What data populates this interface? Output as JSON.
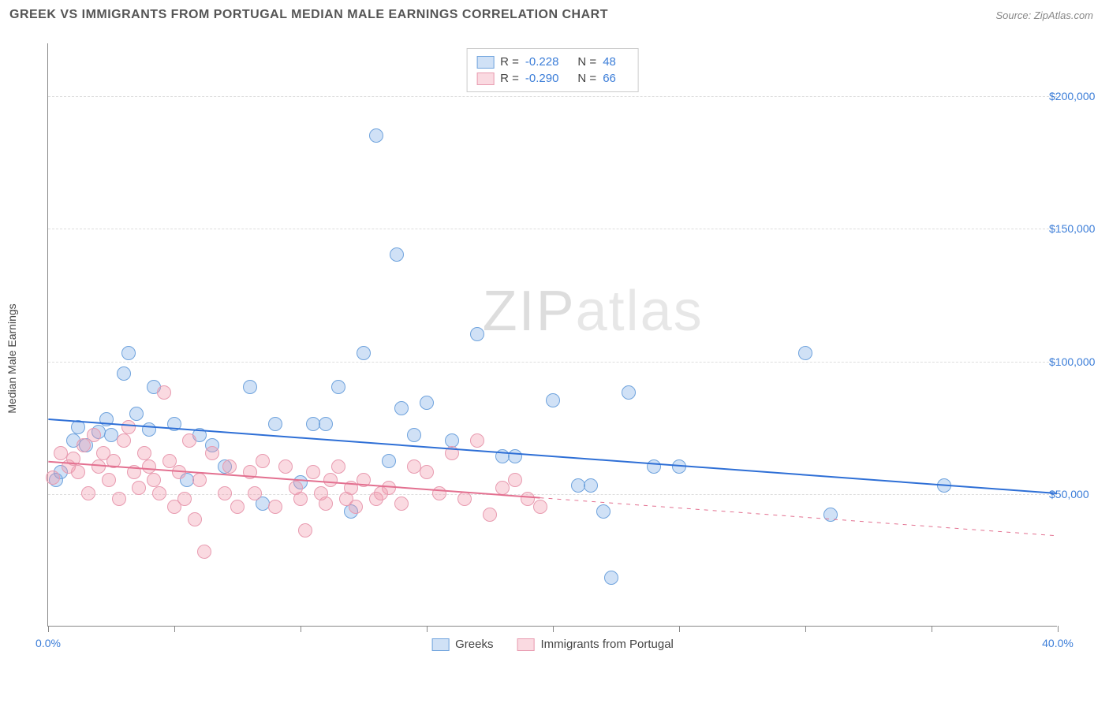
{
  "header": {
    "title": "GREEK VS IMMIGRANTS FROM PORTUGAL MEDIAN MALE EARNINGS CORRELATION CHART",
    "source": "Source: ZipAtlas.com"
  },
  "chart": {
    "type": "scatter",
    "ylabel": "Median Male Earnings",
    "watermark_prefix": "ZIP",
    "watermark_suffix": "atlas",
    "background_color": "#ffffff",
    "grid_color": "#dddddd",
    "axis_color": "#888888",
    "xlim": [
      0,
      40
    ],
    "ylim": [
      0,
      220000
    ],
    "xtick_positions": [
      0,
      5,
      10,
      15,
      20,
      25,
      30,
      35,
      40
    ],
    "xtick_labels": {
      "0": "0.0%",
      "40": "40.0%"
    },
    "ytick_positions": [
      50000,
      100000,
      150000,
      200000
    ],
    "ytick_labels": {
      "50000": "$50,000",
      "100000": "$100,000",
      "150000": "$150,000",
      "200000": "$200,000"
    },
    "marker_radius": 9,
    "marker_stroke_width": 1.2,
    "series": [
      {
        "key": "greeks",
        "label": "Greeks",
        "fill": "rgba(120,170,230,0.35)",
        "stroke": "#6fa3dd",
        "r_label": "R =",
        "r_value": "-0.228",
        "n_label": "N =",
        "n_value": "48",
        "trend": {
          "x1": 0,
          "y1": 78000,
          "x2": 40,
          "y2": 50000,
          "solid_to_x": 40,
          "color": "#2e6fd6",
          "width": 2
        },
        "points": [
          [
            0.3,
            55000
          ],
          [
            0.5,
            58000
          ],
          [
            1.0,
            70000
          ],
          [
            1.2,
            75000
          ],
          [
            1.5,
            68000
          ],
          [
            2.0,
            73000
          ],
          [
            2.3,
            78000
          ],
          [
            2.5,
            72000
          ],
          [
            3.0,
            95000
          ],
          [
            3.2,
            103000
          ],
          [
            3.5,
            80000
          ],
          [
            4.0,
            74000
          ],
          [
            4.2,
            90000
          ],
          [
            5.0,
            76000
          ],
          [
            5.5,
            55000
          ],
          [
            6.0,
            72000
          ],
          [
            6.5,
            68000
          ],
          [
            7.0,
            60000
          ],
          [
            8.0,
            90000
          ],
          [
            8.5,
            46000
          ],
          [
            9.0,
            76000
          ],
          [
            10.0,
            54000
          ],
          [
            10.5,
            76000
          ],
          [
            11.0,
            76000
          ],
          [
            11.5,
            90000
          ],
          [
            12.0,
            43000
          ],
          [
            12.5,
            103000
          ],
          [
            13.0,
            185000
          ],
          [
            13.5,
            62000
          ],
          [
            13.8,
            140000
          ],
          [
            14.0,
            82000
          ],
          [
            14.5,
            72000
          ],
          [
            15.0,
            84000
          ],
          [
            16.0,
            70000
          ],
          [
            17.0,
            110000
          ],
          [
            18.0,
            64000
          ],
          [
            18.5,
            64000
          ],
          [
            20.0,
            85000
          ],
          [
            21.0,
            53000
          ],
          [
            21.5,
            53000
          ],
          [
            22.0,
            43000
          ],
          [
            22.3,
            18000
          ],
          [
            23.0,
            88000
          ],
          [
            24.0,
            60000
          ],
          [
            25.0,
            60000
          ],
          [
            30.0,
            103000
          ],
          [
            31.0,
            42000
          ],
          [
            35.5,
            53000
          ]
        ]
      },
      {
        "key": "portugal",
        "label": "Immigrants from Portugal",
        "fill": "rgba(240,150,170,0.35)",
        "stroke": "#e89bb0",
        "r_label": "R =",
        "r_value": "-0.290",
        "n_label": "N =",
        "n_value": "66",
        "trend": {
          "x1": 0,
          "y1": 62000,
          "x2": 40,
          "y2": 34000,
          "solid_to_x": 19.5,
          "color": "#e37090",
          "width": 2
        },
        "points": [
          [
            0.2,
            56000
          ],
          [
            0.5,
            65000
          ],
          [
            0.8,
            60000
          ],
          [
            1.0,
            63000
          ],
          [
            1.2,
            58000
          ],
          [
            1.4,
            68000
          ],
          [
            1.6,
            50000
          ],
          [
            1.8,
            72000
          ],
          [
            2.0,
            60000
          ],
          [
            2.2,
            65000
          ],
          [
            2.4,
            55000
          ],
          [
            2.6,
            62000
          ],
          [
            2.8,
            48000
          ],
          [
            3.0,
            70000
          ],
          [
            3.2,
            75000
          ],
          [
            3.4,
            58000
          ],
          [
            3.6,
            52000
          ],
          [
            3.8,
            65000
          ],
          [
            4.0,
            60000
          ],
          [
            4.2,
            55000
          ],
          [
            4.4,
            50000
          ],
          [
            4.6,
            88000
          ],
          [
            4.8,
            62000
          ],
          [
            5.0,
            45000
          ],
          [
            5.2,
            58000
          ],
          [
            5.4,
            48000
          ],
          [
            5.6,
            70000
          ],
          [
            5.8,
            40000
          ],
          [
            6.0,
            55000
          ],
          [
            6.2,
            28000
          ],
          [
            6.5,
            65000
          ],
          [
            7.0,
            50000
          ],
          [
            7.2,
            60000
          ],
          [
            7.5,
            45000
          ],
          [
            8.0,
            58000
          ],
          [
            8.2,
            50000
          ],
          [
            8.5,
            62000
          ],
          [
            9.0,
            45000
          ],
          [
            9.4,
            60000
          ],
          [
            9.8,
            52000
          ],
          [
            10.0,
            48000
          ],
          [
            10.2,
            36000
          ],
          [
            10.5,
            58000
          ],
          [
            10.8,
            50000
          ],
          [
            11.0,
            46000
          ],
          [
            11.2,
            55000
          ],
          [
            11.5,
            60000
          ],
          [
            11.8,
            48000
          ],
          [
            12.0,
            52000
          ],
          [
            12.2,
            45000
          ],
          [
            12.5,
            55000
          ],
          [
            13.0,
            48000
          ],
          [
            13.5,
            52000
          ],
          [
            14.0,
            46000
          ],
          [
            15.0,
            58000
          ],
          [
            15.5,
            50000
          ],
          [
            16.0,
            65000
          ],
          [
            16.5,
            48000
          ],
          [
            17.0,
            70000
          ],
          [
            17.5,
            42000
          ],
          [
            18.0,
            52000
          ],
          [
            18.5,
            55000
          ],
          [
            19.0,
            48000
          ],
          [
            19.5,
            45000
          ],
          [
            14.5,
            60000
          ],
          [
            13.2,
            50000
          ]
        ]
      }
    ]
  }
}
